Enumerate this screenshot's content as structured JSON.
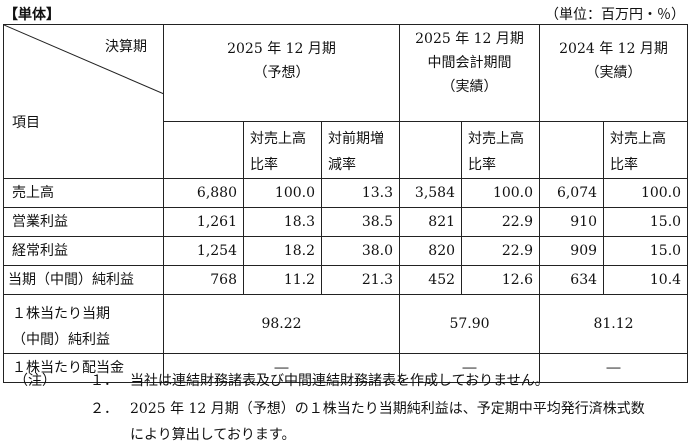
{
  "header": {
    "left": "【単体】",
    "right": "（単位：百万円・％）"
  },
  "table": {
    "corner_top": "決算期",
    "corner_bottom": "項目",
    "periods": [
      {
        "line1": "2025 年 12 月期",
        "line2": "（予想）"
      },
      {
        "line1": "2025 年 12 月期",
        "line2": "中間会計期間",
        "line3": "（実績）"
      },
      {
        "line1": "2024 年 12 月期",
        "line2": "（実績）"
      }
    ],
    "sub_headers": {
      "ratio_sales_1": "対売上高",
      "ratio_sales_2": "比率",
      "yoy_1": "対前期増",
      "yoy_2": "減率"
    },
    "rows": [
      {
        "label": "売上高",
        "v1": "6,880",
        "r1": "100.0",
        "y1": "13.3",
        "v2": "3,584",
        "r2": "100.0",
        "v3": "6,074",
        "r3": "100.0"
      },
      {
        "label": "営業利益",
        "v1": "1,261",
        "r1": "18.3",
        "y1": "38.5",
        "v2": "821",
        "r2": "22.9",
        "v3": "910",
        "r3": "15.0"
      },
      {
        "label": "経常利益",
        "v1": "1,254",
        "r1": "18.2",
        "y1": "38.0",
        "v2": "820",
        "r2": "22.9",
        "v3": "909",
        "r3": "15.0"
      },
      {
        "label": "当期（中間）純利益",
        "v1": "768",
        "r1": "11.2",
        "y1": "21.3",
        "v2": "452",
        "r2": "12.6",
        "v3": "634",
        "r3": "10.4"
      }
    ],
    "eps": {
      "label1": "１株当たり当期",
      "label2": "（中間）純利益",
      "p1": "98.22",
      "p2": "57.90",
      "p3": "81.12"
    },
    "dps": {
      "label": "１株当たり配当金",
      "p1": "―",
      "p2": "―",
      "p3": "―"
    }
  },
  "notes": {
    "prefix": "（注）",
    "n1_num": "１．",
    "n1_text": "当社は連結財務諸表及び中間連結財務諸表を作成しておりません。",
    "n2_num": "２．",
    "n2_text": "2025 年 12 月期（予想）の１株当たり当期純利益は、予定期中平均発行済株式数",
    "n2_cont": "により算出しております。"
  }
}
